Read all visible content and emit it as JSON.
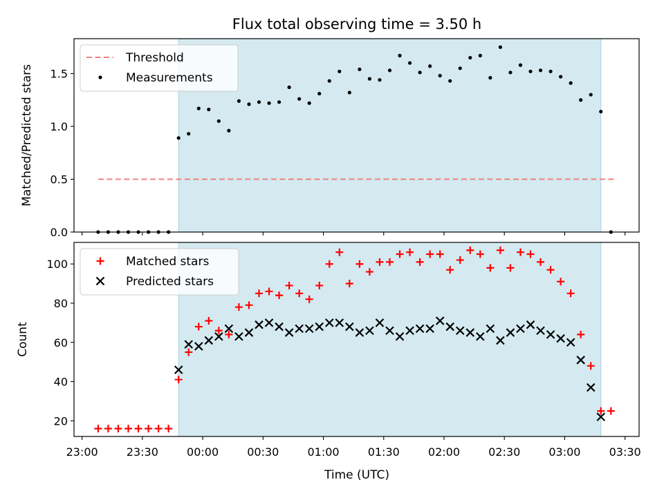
{
  "chart_data": {
    "title": "Flux total observing time = 3.50 h",
    "xlabel": "Time (UTC)",
    "x_ticks": [
      "23:00",
      "23:30",
      "00:00",
      "00:30",
      "01:00",
      "01:30",
      "02:00",
      "02:30",
      "03:00",
      "03:30"
    ],
    "x_tick_minutes": [
      0,
      30,
      60,
      90,
      120,
      150,
      180,
      210,
      240,
      270
    ],
    "xlim_minutes": [
      -4,
      277
    ],
    "observing_window_minutes": [
      48,
      258
    ],
    "shade_color": "#d4eaf0",
    "panels": [
      {
        "type": "scatter",
        "ylabel": "Matched/Predicted stars",
        "ylim": [
          0,
          1.83
        ],
        "y_ticks": [
          0.0,
          0.5,
          1.0,
          1.5
        ],
        "y_tick_labels": [
          "0.0",
          "0.5",
          "1.0",
          "1.5"
        ],
        "legend_position": "upper-left",
        "threshold": {
          "name": "Threshold",
          "value": 0.5,
          "x_start": 8,
          "x_end": 266,
          "color": "#f08080"
        },
        "series": [
          {
            "name": "Measurements",
            "marker": "dot",
            "color": "#000000",
            "x": [
              8,
              13,
              18,
              23,
              28,
              33,
              38,
              43,
              48,
              53,
              58,
              63,
              68,
              73,
              78,
              83,
              88,
              93,
              98,
              103,
              108,
              113,
              118,
              123,
              128,
              133,
              138,
              143,
              148,
              153,
              158,
              163,
              168,
              173,
              178,
              183,
              188,
              193,
              198,
              203,
              208,
              213,
              218,
              223,
              228,
              233,
              238,
              243,
              248,
              253,
              258,
              263
            ],
            "y": [
              0,
              0,
              0,
              0,
              0,
              0,
              0,
              0,
              0.89,
              0.93,
              1.17,
              1.16,
              1.05,
              0.96,
              1.24,
              1.21,
              1.23,
              1.22,
              1.23,
              1.37,
              1.26,
              1.22,
              1.31,
              1.43,
              1.52,
              1.32,
              1.54,
              1.45,
              1.44,
              1.53,
              1.67,
              1.6,
              1.51,
              1.57,
              1.48,
              1.43,
              1.55,
              1.65,
              1.67,
              1.46,
              1.75,
              1.51,
              1.58,
              1.52,
              1.53,
              1.52,
              1.47,
              1.41,
              1.25,
              1.3,
              1.14,
              0
            ]
          }
        ]
      },
      {
        "type": "scatter",
        "ylabel": "Count",
        "ylim": [
          12,
          111
        ],
        "y_ticks": [
          20,
          40,
          60,
          80,
          100
        ],
        "y_tick_labels": [
          "20",
          "40",
          "60",
          "80",
          "100"
        ],
        "legend_position": "upper-left",
        "series": [
          {
            "name": "Matched stars",
            "marker": "plus",
            "color": "#ff0000",
            "x": [
              8,
              13,
              18,
              23,
              28,
              33,
              38,
              43,
              48,
              53,
              58,
              63,
              68,
              73,
              78,
              83,
              88,
              93,
              98,
              103,
              108,
              113,
              118,
              123,
              128,
              133,
              138,
              143,
              148,
              153,
              158,
              163,
              168,
              173,
              178,
              183,
              188,
              193,
              198,
              203,
              208,
              213,
              218,
              223,
              228,
              233,
              238,
              243,
              248,
              253,
              258,
              263
            ],
            "y": [
              16,
              16,
              16,
              16,
              16,
              16,
              16,
              16,
              41,
              55,
              68,
              71,
              66,
              64,
              78,
              79,
              85,
              86,
              84,
              89,
              85,
              82,
              89,
              100,
              106,
              90,
              100,
              96,
              101,
              101,
              105,
              106,
              101,
              105,
              105,
              97,
              102,
              107,
              105,
              98,
              107,
              98,
              106,
              105,
              101,
              97,
              91,
              85,
              64,
              48,
              25,
              25
            ]
          },
          {
            "name": "Predicted stars",
            "marker": "x",
            "color": "#000000",
            "x": [
              48,
              53,
              58,
              63,
              68,
              73,
              78,
              83,
              88,
              93,
              98,
              103,
              108,
              113,
              118,
              123,
              128,
              133,
              138,
              143,
              148,
              153,
              158,
              163,
              168,
              173,
              178,
              183,
              188,
              193,
              198,
              203,
              208,
              213,
              218,
              223,
              228,
              233,
              238,
              243,
              248,
              253,
              258
            ],
            "y": [
              46,
              59,
              58,
              61,
              63,
              67,
              63,
              65,
              69,
              70,
              68,
              65,
              67,
              67,
              68,
              70,
              70,
              68,
              65,
              66,
              70,
              66,
              63,
              66,
              67,
              67,
              71,
              68,
              66,
              65,
              63,
              67,
              61,
              65,
              67,
              69,
              66,
              64,
              62,
              60,
              51,
              37,
              22
            ]
          }
        ]
      }
    ]
  }
}
